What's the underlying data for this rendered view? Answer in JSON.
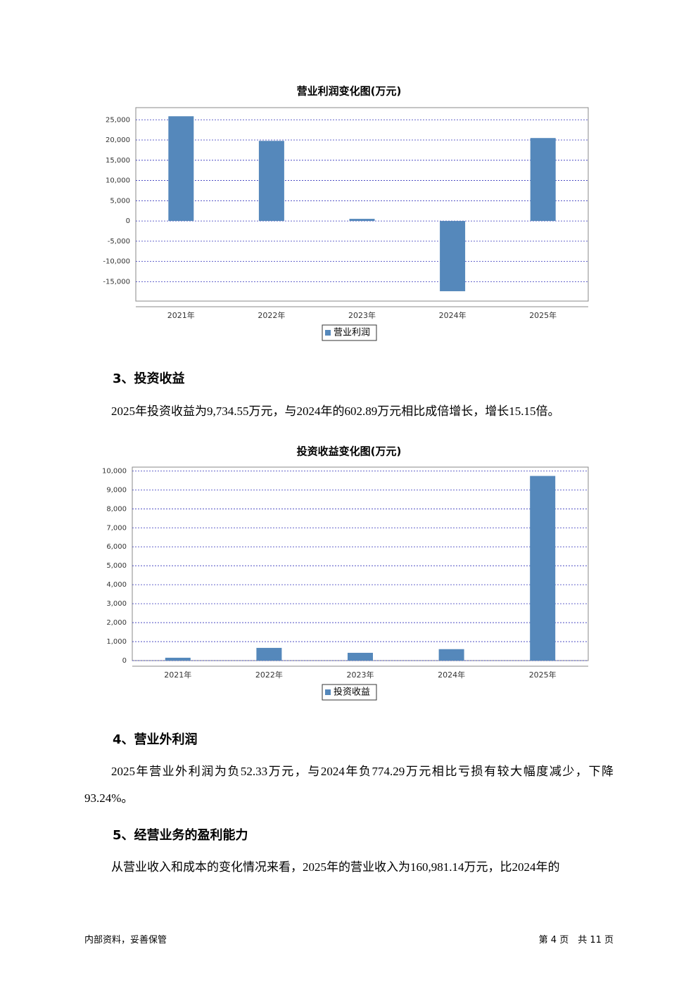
{
  "chart_data": [
    {
      "type": "bar",
      "title": "营业利润变化图(万元)",
      "categories": [
        "2021年",
        "2022年",
        "2023年",
        "2024年",
        "2025年"
      ],
      "series": [
        {
          "name": "营业利润",
          "color": "#5588bb",
          "values": [
            25870,
            19790,
            520,
            -17360,
            20490
          ]
        }
      ],
      "ylim": [
        -19800,
        28000
      ],
      "yticks": [
        {
          "value": -15000,
          "label": "-15,000"
        },
        {
          "value": -10000,
          "label": "-10,000"
        },
        {
          "value": -5000,
          "label": "-5,000"
        },
        0,
        {
          "value": 5000,
          "label": "5,000"
        },
        {
          "value": 10000,
          "label": "10,000"
        },
        {
          "value": 15000,
          "label": "15,000"
        },
        {
          "value": 20000,
          "label": "20,000"
        },
        {
          "value": 25000,
          "label": "25,000"
        }
      ],
      "grid": true
    },
    {
      "type": "bar",
      "title": "投资收益变化图(万元)",
      "categories": [
        "2021年",
        "2022年",
        "2023年",
        "2024年",
        "2025年"
      ],
      "series": [
        {
          "name": "投资收益",
          "color": "#5588bb",
          "values": [
            150,
            670,
            410,
            602.89,
            9734.55
          ]
        }
      ],
      "ylim": [
        0,
        10200
      ],
      "yticks": [
        0,
        {
          "value": 1000,
          "label": "1,000"
        },
        {
          "value": 2000,
          "label": "2,000"
        },
        {
          "value": 3000,
          "label": "3,000"
        },
        {
          "value": 4000,
          "label": "4,000"
        },
        {
          "value": 5000,
          "label": "5,000"
        },
        {
          "value": 6000,
          "label": "6,000"
        },
        {
          "value": 7000,
          "label": "7,000"
        },
        {
          "value": 8000,
          "label": "8,000"
        },
        {
          "value": 9000,
          "label": "9,000"
        },
        {
          "value": 10000,
          "label": "10,000"
        }
      ],
      "grid": true
    }
  ],
  "document": {
    "headings": [
      "3、投资收益",
      "4、营业外利润",
      "5、经营业务的盈利能力"
    ],
    "paragraphs": [
      "2025年投资收益为9,734.55万元，与2024年的602.89万元相比成倍增长，增长15.15倍。",
      "2025年营业外利润为负52.33万元，与2024年负774.29万元相比亏损有较大幅度减少，下降93.24%。",
      "从营业收入和成本的变化情况来看，2025年的营业收入为160,981.14万元，比2024年的"
    ],
    "footer": {
      "left": "内部资料，妥善保管",
      "right": "第 4 页　共 11 页"
    }
  }
}
